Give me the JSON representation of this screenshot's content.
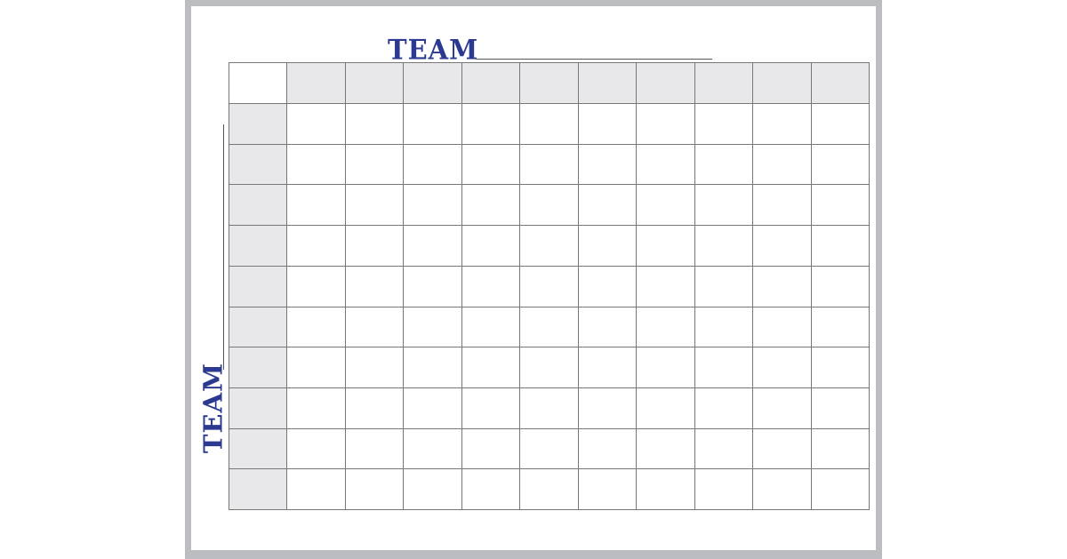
{
  "colors": {
    "title": "#2b3990",
    "header_fill": "#e8e8ea",
    "frame": "#bcbdc0"
  },
  "top_team": {
    "label": "TEAM"
  },
  "left_team": {
    "label": "TEAM"
  },
  "grid": {
    "columns": 10,
    "rows": 10
  }
}
